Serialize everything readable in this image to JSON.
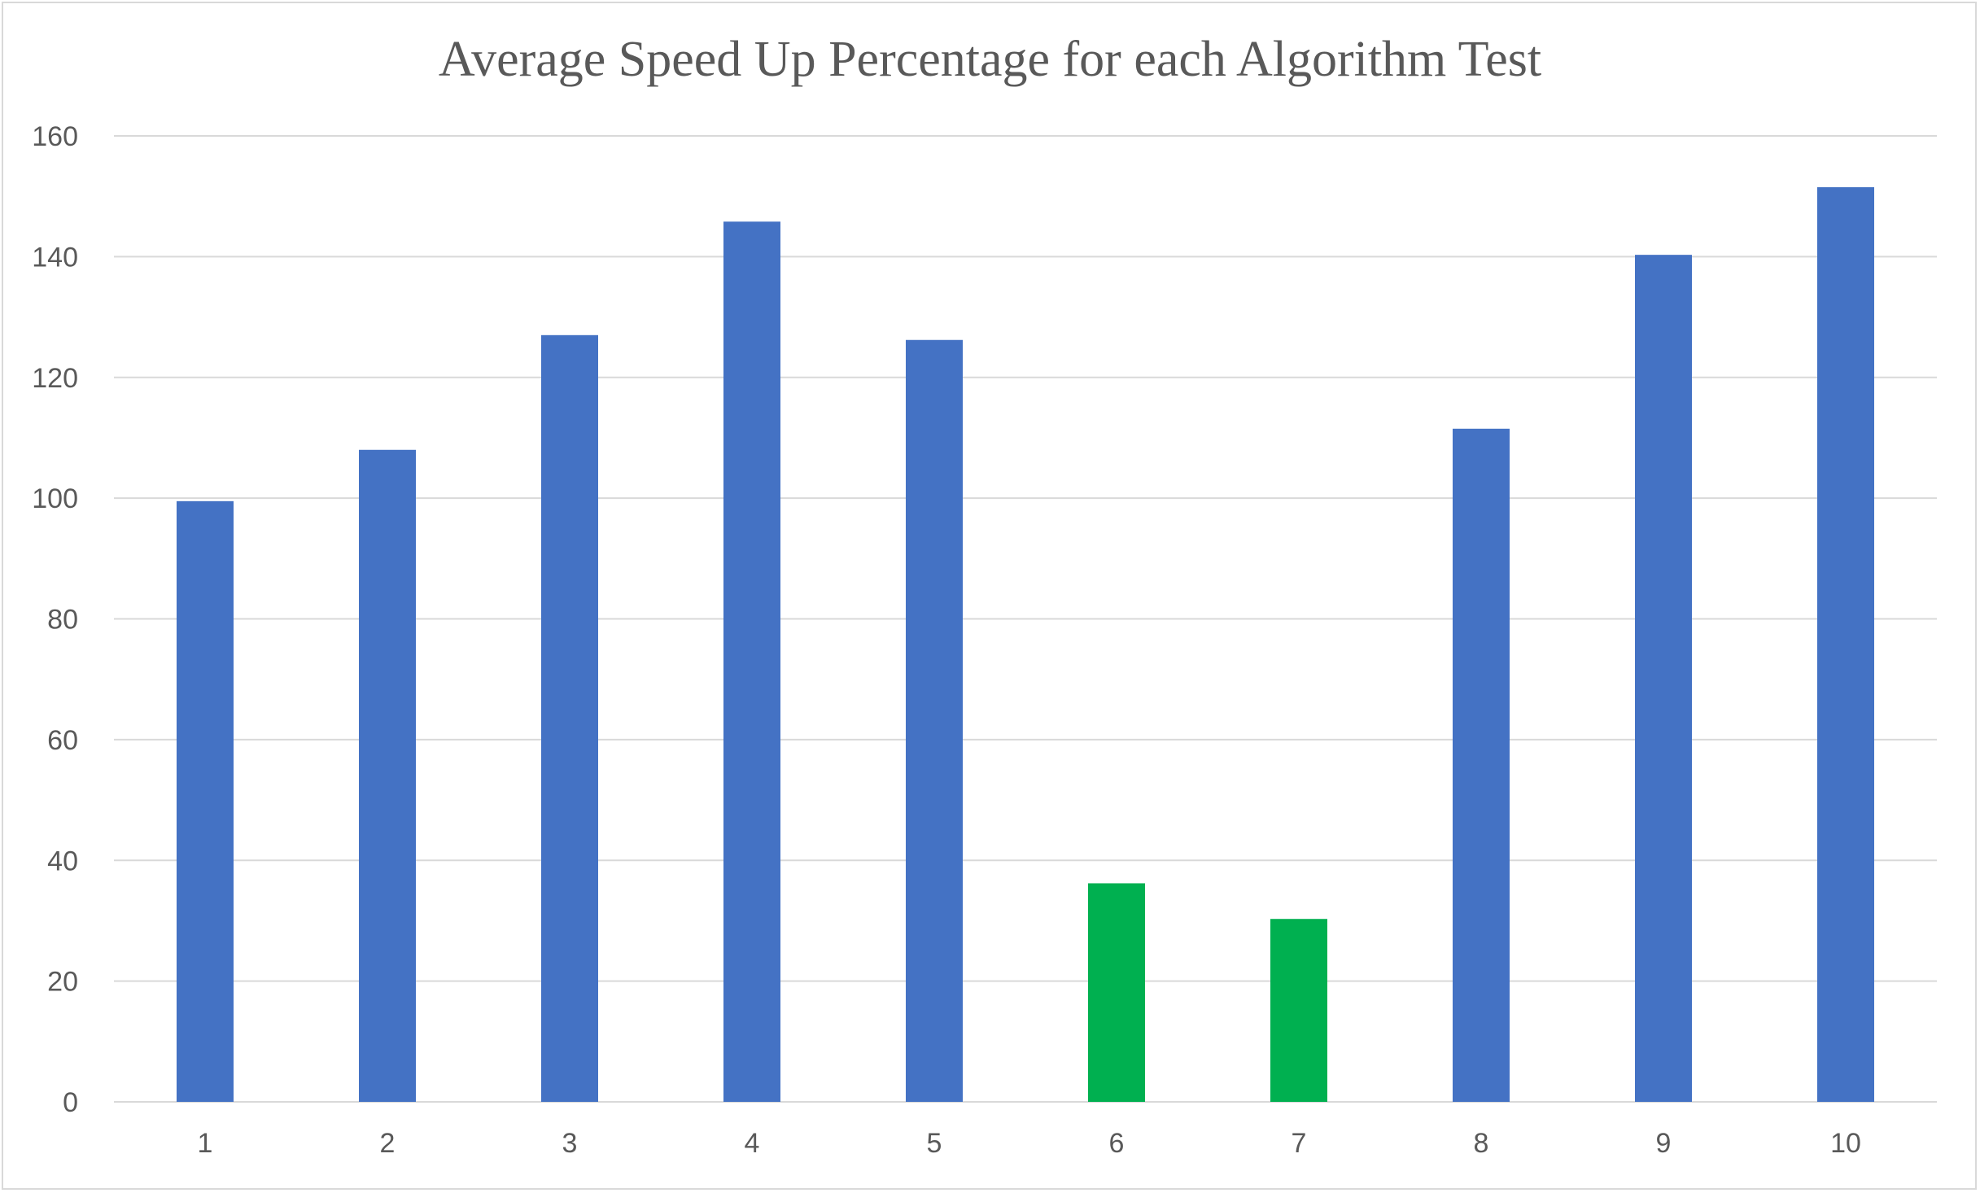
{
  "chart_data": {
    "type": "bar",
    "title": "Average Speed Up Percentage for each Algorithm Test",
    "xlabel": "",
    "ylabel": "",
    "categories": [
      "1",
      "2",
      "3",
      "4",
      "5",
      "6",
      "7",
      "8",
      "9",
      "10"
    ],
    "values": [
      99.5,
      108,
      127,
      145.8,
      126.2,
      36.2,
      30.3,
      111.5,
      140.3,
      151.5
    ],
    "bar_colors": [
      "#4472C4",
      "#4472C4",
      "#4472C4",
      "#4472C4",
      "#4472C4",
      "#00B050",
      "#00B050",
      "#4472C4",
      "#4472C4",
      "#4472C4"
    ],
    "ylim": [
      0,
      160
    ],
    "y_ticks": [
      "0",
      "20",
      "40",
      "60",
      "80",
      "100",
      "120",
      "140",
      "160"
    ],
    "grid": true,
    "legend": "none"
  },
  "colors": {
    "primary_bar": "#4472C4",
    "highlight_bar": "#00B050",
    "gridline": "#d9d9d9",
    "text": "#595959"
  }
}
